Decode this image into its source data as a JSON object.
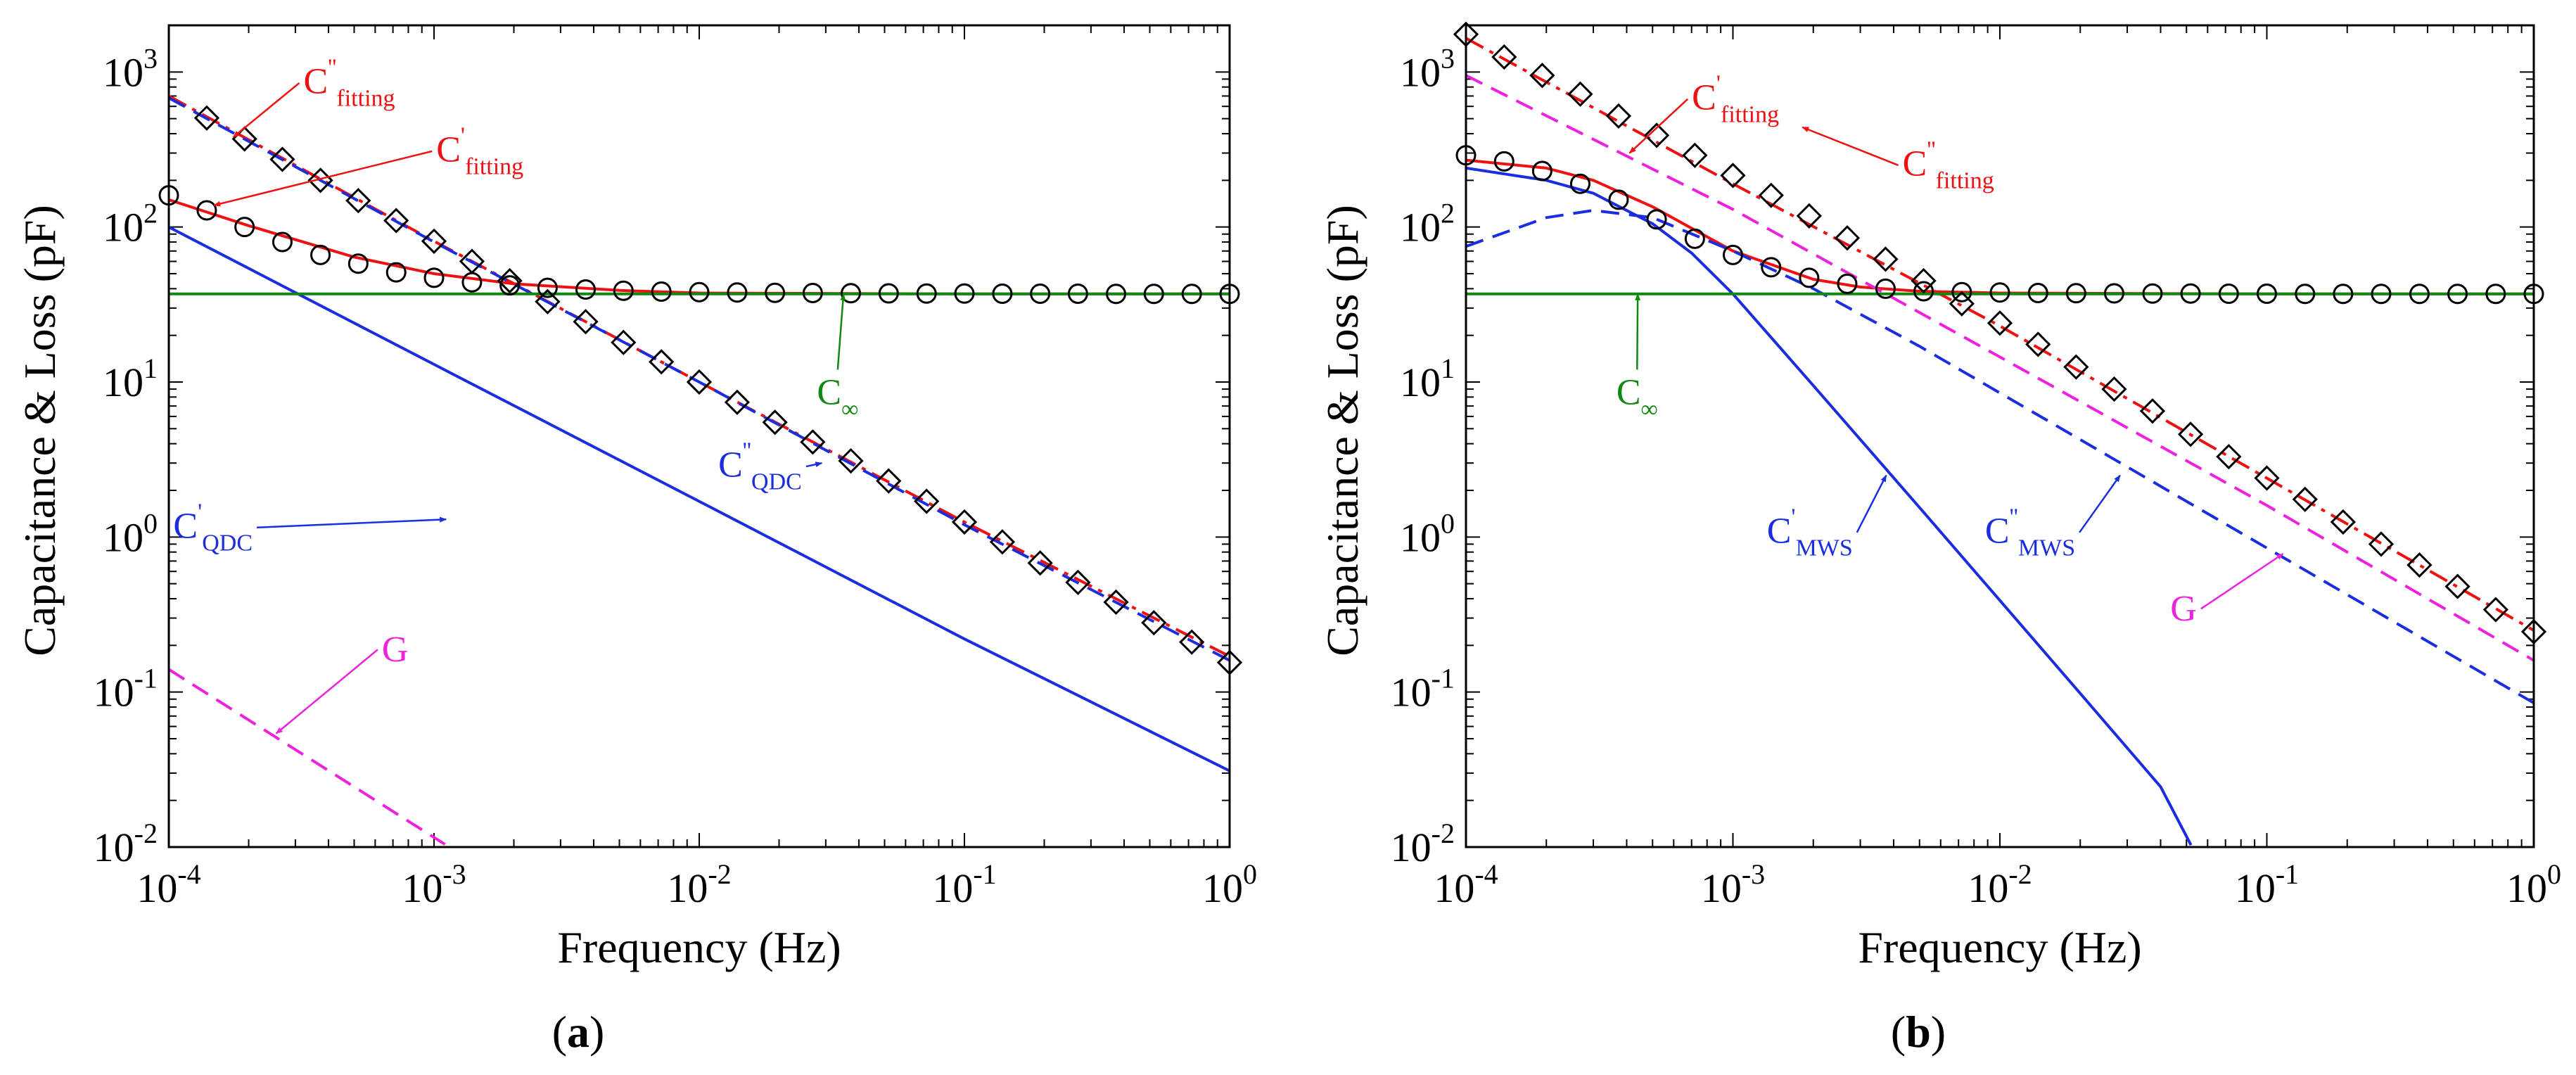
{
  "figure": {
    "xlabel": "Frequency (Hz)",
    "ylabel": "Capacitance & Loss (pF)",
    "colors": {
      "red": "#ee1111",
      "blue": "#1a2ee0",
      "green": "#118811",
      "magenta": "#ee22dd",
      "black": "#000000"
    }
  },
  "chart_data": [
    {
      "type": "line",
      "panel_label": "(a)",
      "panel_tag": "a",
      "x_scale": "log",
      "y_scale": "log",
      "xlim": [
        0.0001,
        1
      ],
      "ylim": [
        0.01,
        2000
      ],
      "xticks": [
        {
          "value": 0.0001,
          "base": "10",
          "exp": "-4"
        },
        {
          "value": 0.001,
          "base": "10",
          "exp": "-3"
        },
        {
          "value": 0.01,
          "base": "10",
          "exp": "-2"
        },
        {
          "value": 0.1,
          "base": "10",
          "exp": "-1"
        },
        {
          "value": 1,
          "base": "10",
          "exp": "0"
        }
      ],
      "yticks": [
        {
          "value": 0.01,
          "base": "10",
          "exp": "-2"
        },
        {
          "value": 0.1,
          "base": "10",
          "exp": "-1"
        },
        {
          "value": 1,
          "base": "10",
          "exp": "0"
        },
        {
          "value": 10,
          "base": "10",
          "exp": "1"
        },
        {
          "value": 100,
          "base": "10",
          "exp": "2"
        },
        {
          "value": 1000,
          "base": "10",
          "exp": "3"
        }
      ],
      "curves": [
        {
          "name": "C'fitting",
          "color": "#ee1111",
          "style": "solid",
          "x": [
            0.0001,
            0.0002,
            0.0005,
            0.001,
            0.002,
            0.005,
            0.01,
            0.1,
            1
          ],
          "y": [
            150,
            102,
            64,
            50,
            43,
            39,
            37.5,
            37,
            37
          ]
        },
        {
          "name": "C''fitting",
          "color": "#ee1111",
          "style": "dashdot",
          "x": [
            0.0001,
            0.001,
            0.01,
            0.1,
            1
          ],
          "y": [
            700,
            81,
            10,
            1.25,
            0.17
          ]
        },
        {
          "name": "C''QDC",
          "color": "#1a2ee0",
          "style": "dash",
          "x": [
            0.0001,
            0.001,
            0.01,
            0.1,
            1
          ],
          "y": [
            680,
            80,
            10,
            1.2,
            0.16
          ]
        },
        {
          "name": "C'QDC",
          "color": "#1a2ee0",
          "style": "solid",
          "x": [
            0.0001,
            0.001,
            0.01,
            0.1,
            1
          ],
          "y": [
            100,
            13,
            1.7,
            0.22,
            0.031
          ]
        },
        {
          "name": "C∞",
          "color": "#118811",
          "style": "solid",
          "x": [
            0.0001,
            1
          ],
          "y": [
            37,
            37
          ]
        },
        {
          "name": "G",
          "color": "#ee22dd",
          "style": "dash",
          "x": [
            0.0001,
            0.0011
          ],
          "y": [
            0.14,
            0.0104
          ]
        }
      ],
      "markers": [
        {
          "shape": "circle",
          "x": [
            0.0001,
            0.000139,
            0.000193,
            0.000268,
            0.000373,
            0.000518,
            0.00072,
            0.001,
            0.00139,
            0.00193,
            0.00268,
            0.00373,
            0.00518,
            0.0072,
            0.01,
            0.0139,
            0.0193,
            0.0268,
            0.0373,
            0.0518,
            0.072,
            0.1,
            0.139,
            0.193,
            0.268,
            0.373,
            0.518,
            0.72,
            1
          ],
          "y": [
            160,
            128,
            100,
            80,
            66,
            58,
            51,
            47,
            44,
            42,
            40.5,
            39.5,
            38.8,
            38.3,
            38,
            37.8,
            37.6,
            37.5,
            37.4,
            37.3,
            37.2,
            37.2,
            37.1,
            37.1,
            37.1,
            37,
            37,
            37,
            37
          ]
        },
        {
          "shape": "diamond",
          "x": [
            0.000139,
            0.000193,
            0.000268,
            0.000373,
            0.000518,
            0.00072,
            0.001,
            0.00139,
            0.00193,
            0.00268,
            0.00373,
            0.00518,
            0.0072,
            0.01,
            0.0139,
            0.0193,
            0.0268,
            0.0373,
            0.0518,
            0.072,
            0.1,
            0.139,
            0.193,
            0.268,
            0.373,
            0.518,
            0.72,
            1
          ],
          "y": [
            505,
            370,
            273,
            200,
            148,
            110,
            81,
            60,
            45,
            33,
            24.5,
            18,
            13.5,
            10,
            7.4,
            5.5,
            4.1,
            3.1,
            2.3,
            1.7,
            1.25,
            0.93,
            0.68,
            0.51,
            0.38,
            0.28,
            0.21,
            0.155
          ]
        }
      ],
      "annotations": [
        {
          "base": "C",
          "sup": "''",
          "sub": "fitting",
          "color": "#ee1111",
          "at": [
            0.000322,
            730
          ],
          "arrow_to": [
            0.000175,
            380
          ]
        },
        {
          "base": "C",
          "sup": "'",
          "sub": "fitting",
          "color": "#ee1111",
          "at": [
            0.00102,
            265
          ],
          "arrow_to": [
            0.000148,
            138
          ]
        },
        {
          "base": "C",
          "sup": "",
          "sub": "∞",
          "color": "#118811",
          "at": [
            0.0278,
            7.2
          ],
          "arrow_to": [
            0.035,
            37
          ]
        },
        {
          "base": "C",
          "sup": "'",
          "sub": "QDC",
          "color": "#1a2ee0",
          "at": [
            0.000104,
            0.99
          ],
          "arrow_to": [
            0.00111,
            1.3
          ]
        },
        {
          "base": "C",
          "sup": "''",
          "sub": "QDC",
          "color": "#1a2ee0",
          "at": [
            0.0118,
            2.45
          ],
          "arrow_to": [
            0.029,
            3.0
          ]
        },
        {
          "base": "G",
          "sup": "",
          "sub": "",
          "color": "#ee22dd",
          "at": [
            0.000636,
            0.158
          ],
          "arrow_to": [
            0.000254,
            0.054
          ]
        }
      ]
    },
    {
      "type": "line",
      "panel_label": "(b)",
      "panel_tag": "b",
      "x_scale": "log",
      "y_scale": "log",
      "xlim": [
        0.0001,
        1
      ],
      "ylim": [
        0.01,
        2000
      ],
      "xticks": [
        {
          "value": 0.0001,
          "base": "10",
          "exp": "-4"
        },
        {
          "value": 0.001,
          "base": "10",
          "exp": "-3"
        },
        {
          "value": 0.01,
          "base": "10",
          "exp": "-2"
        },
        {
          "value": 0.1,
          "base": "10",
          "exp": "-1"
        },
        {
          "value": 1,
          "base": "10",
          "exp": "0"
        }
      ],
      "yticks": [
        {
          "value": 0.01,
          "base": "10",
          "exp": "-2"
        },
        {
          "value": 0.1,
          "base": "10",
          "exp": "-1"
        },
        {
          "value": 1,
          "base": "10",
          "exp": "0"
        },
        {
          "value": 10,
          "base": "10",
          "exp": "1"
        },
        {
          "value": 100,
          "base": "10",
          "exp": "2"
        },
        {
          "value": 1000,
          "base": "10",
          "exp": "3"
        }
      ],
      "curves": [
        {
          "name": "C'fitting",
          "color": "#ee1111",
          "style": "solid",
          "x": [
            0.0001,
            0.0002,
            0.0003,
            0.0005,
            0.001,
            0.002,
            0.003,
            0.005,
            0.01,
            0.1,
            1
          ],
          "y": [
            270,
            240,
            200,
            135,
            70,
            46,
            41,
            38.5,
            37.5,
            37,
            37
          ]
        },
        {
          "name": "C''fitting",
          "color": "#ee1111",
          "style": "dashdot",
          "x": [
            0.0001,
            0.001,
            0.01,
            0.1,
            1
          ],
          "y": [
            1650,
            190,
            23,
            2.4,
            0.25
          ]
        },
        {
          "name": "C'MWS",
          "color": "#1a2ee0",
          "style": "solid",
          "x": [
            0.0001,
            0.0002,
            0.0003,
            0.0005,
            0.0007,
            0.001,
            0.002,
            0.005,
            0.01,
            0.02,
            0.04,
            0.052
          ],
          "y": [
            240,
            200,
            165,
            105,
            68,
            37,
            9.5,
            1.55,
            0.39,
            0.098,
            0.0245,
            0.0103
          ]
        },
        {
          "name": "C''MWS",
          "color": "#1a2ee0",
          "style": "dash",
          "x": [
            0.0001,
            0.0002,
            0.0003,
            0.0005,
            0.001,
            0.002,
            0.005,
            0.01,
            0.1,
            1
          ],
          "y": [
            75,
            115,
            128,
            115,
            70,
            40,
            17,
            8.5,
            0.85,
            0.085
          ]
        },
        {
          "name": "C∞",
          "color": "#118811",
          "style": "solid",
          "x": [
            0.0001,
            1
          ],
          "y": [
            37,
            37
          ]
        },
        {
          "name": "G",
          "color": "#ee22dd",
          "style": "dash",
          "x": [
            0.0001,
            0.001,
            0.01,
            0.1,
            1
          ],
          "y": [
            950,
            130,
            14.5,
            1.6,
            0.16
          ]
        }
      ],
      "markers": [
        {
          "shape": "circle",
          "x": [
            0.0001,
            0.000139,
            0.000193,
            0.000268,
            0.000373,
            0.000518,
            0.00072,
            0.001,
            0.00139,
            0.00193,
            0.00268,
            0.00373,
            0.00518,
            0.0072,
            0.01,
            0.0139,
            0.0193,
            0.0268,
            0.0373,
            0.0518,
            0.072,
            0.1,
            0.139,
            0.193,
            0.268,
            0.373,
            0.518,
            0.72,
            1
          ],
          "y": [
            290,
            265,
            230,
            190,
            150,
            112,
            84,
            66,
            55,
            47,
            43,
            40,
            38.5,
            38,
            37.8,
            37.5,
            37.4,
            37.3,
            37.2,
            37.2,
            37.1,
            37.1,
            37,
            37,
            37,
            37,
            37,
            37,
            37
          ]
        },
        {
          "shape": "diamond",
          "x": [
            0.0001,
            0.000139,
            0.000193,
            0.000268,
            0.000373,
            0.000518,
            0.00072,
            0.001,
            0.00139,
            0.00193,
            0.00268,
            0.00373,
            0.00518,
            0.0072,
            0.01,
            0.0139,
            0.0193,
            0.0268,
            0.0373,
            0.0518,
            0.072,
            0.1,
            0.139,
            0.193,
            0.268,
            0.373,
            0.518,
            0.72,
            1
          ],
          "y": [
            1750,
            1250,
            950,
            720,
            520,
            390,
            290,
            215,
            160,
            118,
            85,
            62,
            45,
            32,
            24,
            17.5,
            12.5,
            9,
            6.5,
            4.6,
            3.3,
            2.4,
            1.75,
            1.25,
            0.9,
            0.66,
            0.48,
            0.34,
            0.245
          ]
        }
      ],
      "annotations": [
        {
          "base": "C",
          "sup": "'",
          "sub": "fitting",
          "color": "#ee1111",
          "at": [
            0.000702,
            575
          ],
          "arrow_to": [
            0.00041,
            300
          ]
        },
        {
          "base": "C",
          "sup": "''",
          "sub": "fitting",
          "color": "#ee1111",
          "at": [
            0.00432,
            215
          ],
          "arrow_to": [
            0.00182,
            440
          ]
        },
        {
          "base": "C",
          "sup": "",
          "sub": "∞",
          "color": "#118811",
          "at": [
            0.000366,
            7.2
          ],
          "arrow_to": [
            0.00044,
            37
          ]
        },
        {
          "base": "C",
          "sup": "'",
          "sub": "MWS",
          "color": "#1a2ee0",
          "at": [
            0.00134,
            0.92
          ],
          "arrow_to": [
            0.00375,
            2.5
          ]
        },
        {
          "base": "C",
          "sup": "''",
          "sub": "MWS",
          "color": "#1a2ee0",
          "at": [
            0.0088,
            0.92
          ],
          "arrow_to": [
            0.0282,
            2.5
          ]
        },
        {
          "base": "G",
          "sup": "",
          "sub": "",
          "color": "#ee22dd",
          "at": [
            0.0435,
            0.29
          ],
          "arrow_to": [
            0.115,
            0.78
          ]
        }
      ]
    }
  ]
}
